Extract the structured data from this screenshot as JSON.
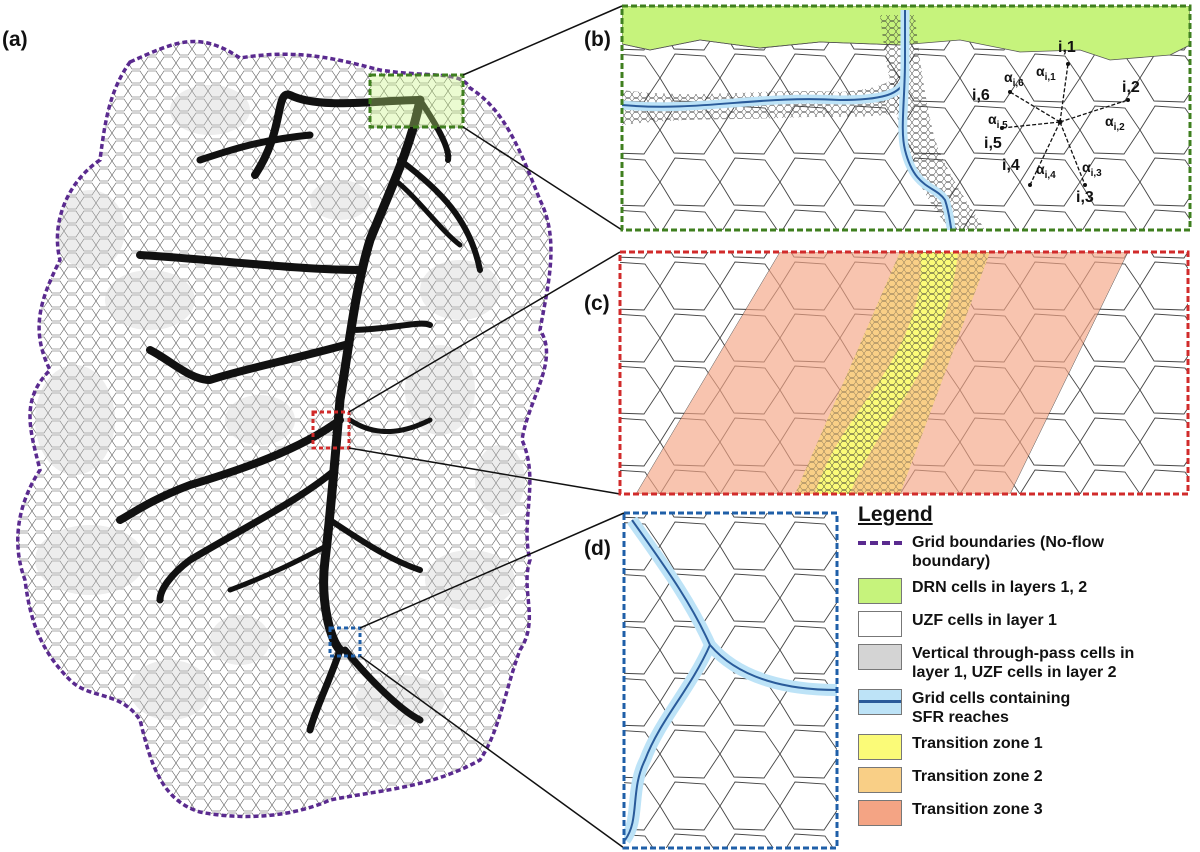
{
  "panels": {
    "a": "(a)",
    "b": "(b)",
    "c": "(c)",
    "d": "(d)"
  },
  "panel_b_labels": {
    "cells": [
      "i,1",
      "i,2",
      "i,3",
      "i,4",
      "i,5",
      "i,6"
    ],
    "alpha": "α",
    "alpha_subs": [
      "i,1",
      "i,2",
      "i,3",
      "i,4",
      "i,5",
      "i,6"
    ]
  },
  "legend": {
    "title": "Legend",
    "items": [
      {
        "label_1": "Grid boundaries (No-flow",
        "label_2": "boundary)",
        "kind": "boundary",
        "color": "#5a2a8f"
      },
      {
        "label_1": "DRN cells in layers 1, 2",
        "label_2": "",
        "kind": "fill",
        "color": "#c6f37c"
      },
      {
        "label_1": "UZF cells in layer 1",
        "label_2": "",
        "kind": "fill",
        "color": "#ffffff"
      },
      {
        "label_1": "Vertical through-pass cells in",
        "label_2": "layer 1, UZF cells in layer 2",
        "kind": "fill",
        "color": "#d4d4d4"
      },
      {
        "label_1": "Grid cells containing",
        "label_2": "SFR reaches",
        "kind": "sfr",
        "color": "#bde3f7"
      },
      {
        "label_1": "Transition zone 1",
        "label_2": "",
        "kind": "fill",
        "color": "#fbfb78"
      },
      {
        "label_1": "Transition zone 2",
        "label_2": "",
        "kind": "fill",
        "color": "#f9cf86"
      },
      {
        "label_1": "Transition zone 3",
        "label_2": "",
        "kind": "fill",
        "color": "#f4a484"
      }
    ]
  },
  "colors": {
    "boundary": "#5a2a8f",
    "drn": "#c6f37c",
    "gray_cells": "#d4d4d4",
    "sfr": "#bde3f7",
    "stream_line": "#2a5b9a",
    "zone1": "#fbfb78",
    "zone2": "#f9cf86",
    "zone3": "#f4a484",
    "box_b": "#3f7f1f",
    "box_c": "#d12b2b",
    "box_d": "#1f5fa8"
  }
}
